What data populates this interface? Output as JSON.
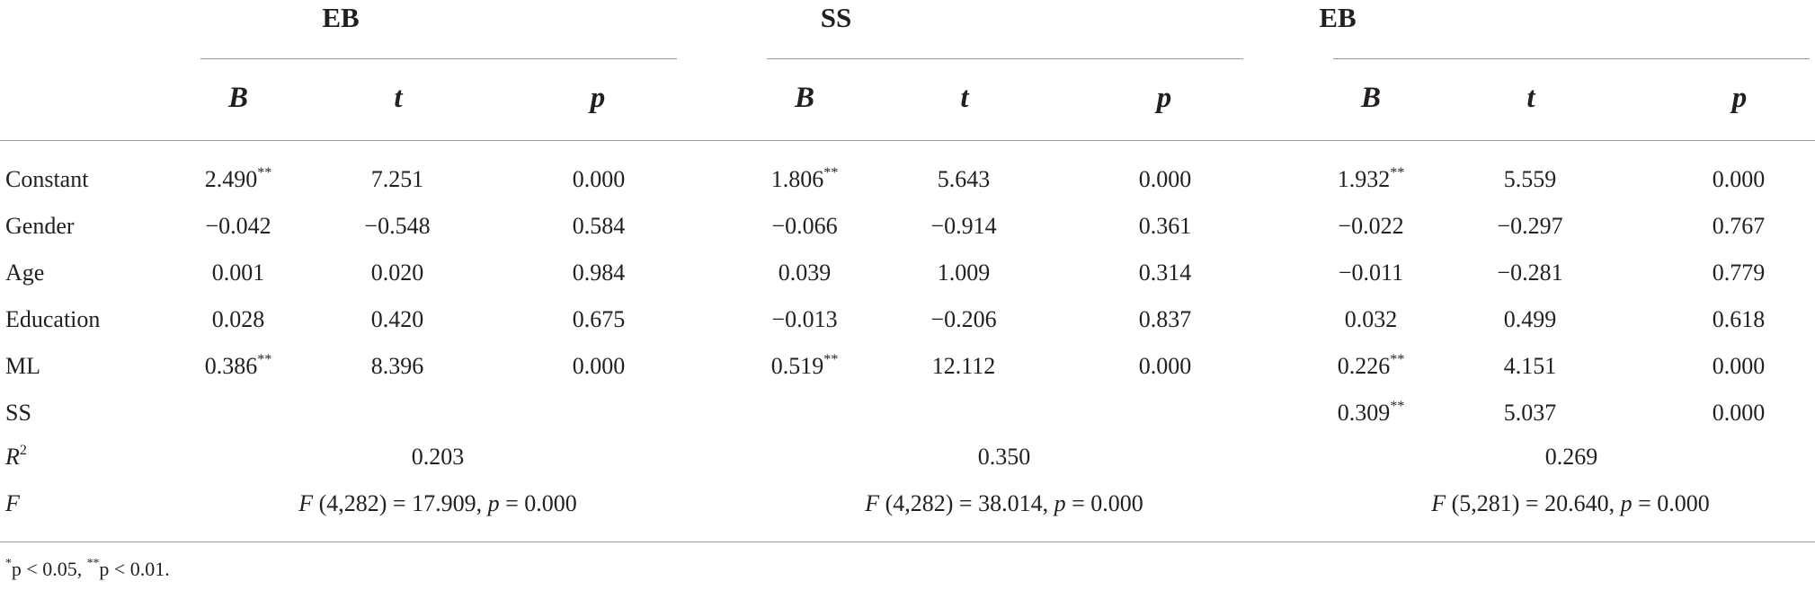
{
  "groups": [
    {
      "label": "EB",
      "subheaders": [
        "B",
        "t",
        "p"
      ]
    },
    {
      "label": "SS",
      "subheaders": [
        "B",
        "t",
        "p"
      ]
    },
    {
      "label": "EB",
      "subheaders": [
        "B",
        "t",
        "p"
      ]
    }
  ],
  "rows": [
    {
      "label": "Constant",
      "cells": [
        "2.490**",
        "7.251",
        "0.000",
        "1.806**",
        "5.643",
        "0.000",
        "1.932**",
        "5.559",
        "0.000"
      ]
    },
    {
      "label": "Gender",
      "cells": [
        "−0.042",
        "−0.548",
        "0.584",
        "−0.066",
        "−0.914",
        "0.361",
        "−0.022",
        "−0.297",
        "0.767"
      ]
    },
    {
      "label": "Age",
      "cells": [
        "0.001",
        "0.020",
        "0.984",
        "0.039",
        "1.009",
        "0.314",
        "−0.011",
        "−0.281",
        "0.779"
      ]
    },
    {
      "label": "Education",
      "cells": [
        "0.028",
        "0.420",
        "0.675",
        "−0.013",
        "−0.206",
        "0.837",
        "0.032",
        "0.499",
        "0.618"
      ]
    },
    {
      "label": "ML",
      "cells": [
        "0.386**",
        "8.396",
        "0.000",
        "0.519**",
        "12.112",
        "0.000",
        "0.226**",
        "4.151",
        "0.000"
      ]
    },
    {
      "label": "SS",
      "cells": [
        "",
        "",
        "",
        "",
        "",
        "",
        "0.309**",
        "5.037",
        "0.000"
      ]
    }
  ],
  "r2": {
    "label_base": "R",
    "label_sup": "2",
    "values": [
      "0.203",
      "0.350",
      "0.269"
    ]
  },
  "f": {
    "label": "F",
    "values": [
      {
        "f": "F",
        "df": " (4,282) = 17.909, ",
        "p": "p",
        "pval": " = 0.000"
      },
      {
        "f": "F",
        "df": " (4,282) = 38.014, ",
        "p": "p",
        "pval": " = 0.000"
      },
      {
        "f": "F",
        "df": " (5,281) = 20.640, ",
        "p": "p",
        "pval": " = 0.000"
      }
    ]
  },
  "footnote": {
    "star1": "*",
    "text1": "p < 0.05, ",
    "star2": "**",
    "text2": "p < 0.01."
  }
}
